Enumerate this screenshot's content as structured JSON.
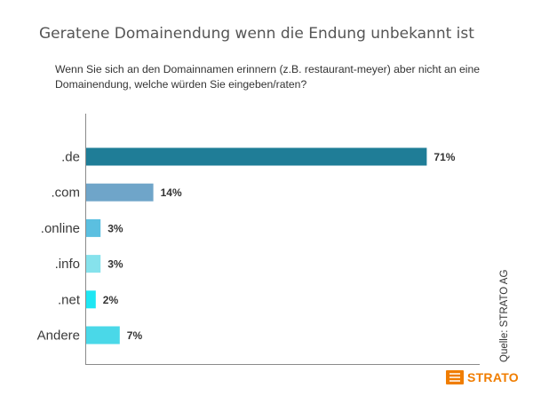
{
  "chart_data": {
    "type": "bar",
    "orientation": "horizontal",
    "title": "Geratene Domainendung wenn die Endung unbekannt ist",
    "subtitle": "Wenn Sie sich an den Domainnamen erinnern (z.B. restaurant-meyer) aber nicht an eine Domainendung, welche würden Sie eingeben/raten?",
    "categories": [
      ".de",
      ".com",
      ".online",
      ".info",
      ".net",
      "Andere"
    ],
    "values": [
      71,
      14,
      3,
      3,
      2,
      7
    ],
    "value_labels": [
      "71%",
      "14%",
      "3%",
      "3%",
      "2%",
      "7%"
    ],
    "unit": "%",
    "xlim": [
      0,
      80
    ],
    "grid": false,
    "legend": "none",
    "bar_colors": [
      "#1f7d97",
      "#6fa5c9",
      "#5bbfe0",
      "#86e2ec",
      "#1ee6f3",
      "#4ad8e8"
    ],
    "axis_color": "#8a8a8a"
  },
  "source": "Quelle: STRATO  AG",
  "brand": {
    "name": "STRATO",
    "icon": "strato-logo-icon",
    "color": "#f07d00"
  }
}
